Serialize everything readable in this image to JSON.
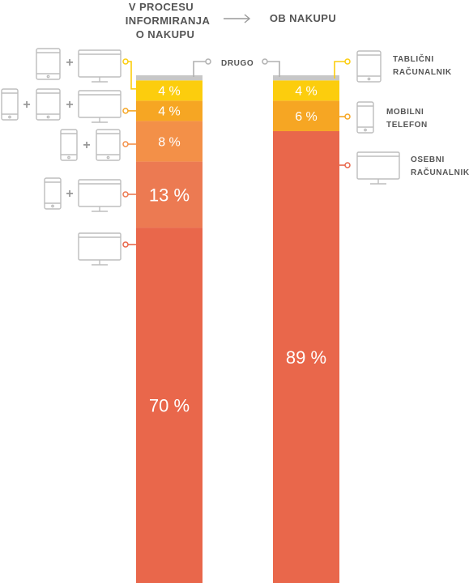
{
  "headers": {
    "left": [
      "V PROCESU",
      "INFORMIRANJA",
      "O NAKUPU"
    ],
    "right": "OB NAKUPU"
  },
  "colors": {
    "other": "#c7c7c7",
    "yellow": "#fccd0d",
    "amber": "#f6a623",
    "orange": "#f39048",
    "coral": "#ec7a52",
    "red": "#e9674b",
    "icon": "#bdbdbd",
    "connector_gray": "#b0b0b0"
  },
  "chart_data": [
    {
      "type": "bar",
      "title": "V PROCESU INFORMIRANJA O NAKUPU",
      "stacked": true,
      "segments": [
        {
          "devices": [
            "desktop"
          ],
          "value": 70,
          "label": "70 %",
          "color": "#e9674b"
        },
        {
          "devices": [
            "phone",
            "desktop"
          ],
          "value": 13,
          "label": "13 %",
          "color": "#ec7a52"
        },
        {
          "devices": [
            "phone",
            "tablet"
          ],
          "value": 8,
          "label": "8 %",
          "color": "#f39048"
        },
        {
          "devices": [
            "phone",
            "tablet",
            "desktop"
          ],
          "value": 4,
          "label": "4 %",
          "color": "#f6a623"
        },
        {
          "devices": [
            "tablet",
            "desktop"
          ],
          "value": 4,
          "label": "4 %",
          "color": "#fccd0d"
        },
        {
          "devices": [
            "other"
          ],
          "value": 1,
          "label": "",
          "color": "#c7c7c7"
        }
      ]
    },
    {
      "type": "bar",
      "title": "OB NAKUPU",
      "stacked": true,
      "segments": [
        {
          "devices": [
            "desktop"
          ],
          "value": 89,
          "label": "89 %",
          "color": "#e9674b"
        },
        {
          "devices": [
            "phone"
          ],
          "value": 6,
          "label": "6 %",
          "color": "#f6a623"
        },
        {
          "devices": [
            "tablet"
          ],
          "value": 4,
          "label": "4 %",
          "color": "#fccd0d"
        },
        {
          "devices": [
            "other"
          ],
          "value": 1,
          "label": "",
          "color": "#c7c7c7"
        }
      ]
    }
  ],
  "legend": {
    "other": "DRUGO",
    "tablet": [
      "TABLIČNI",
      "RAČUNALNIK"
    ],
    "phone": [
      "MOBILNI",
      "TELEFON"
    ],
    "desktop": [
      "OSEBNI",
      "RAČUNALNIK"
    ]
  },
  "plus_sign": "+"
}
